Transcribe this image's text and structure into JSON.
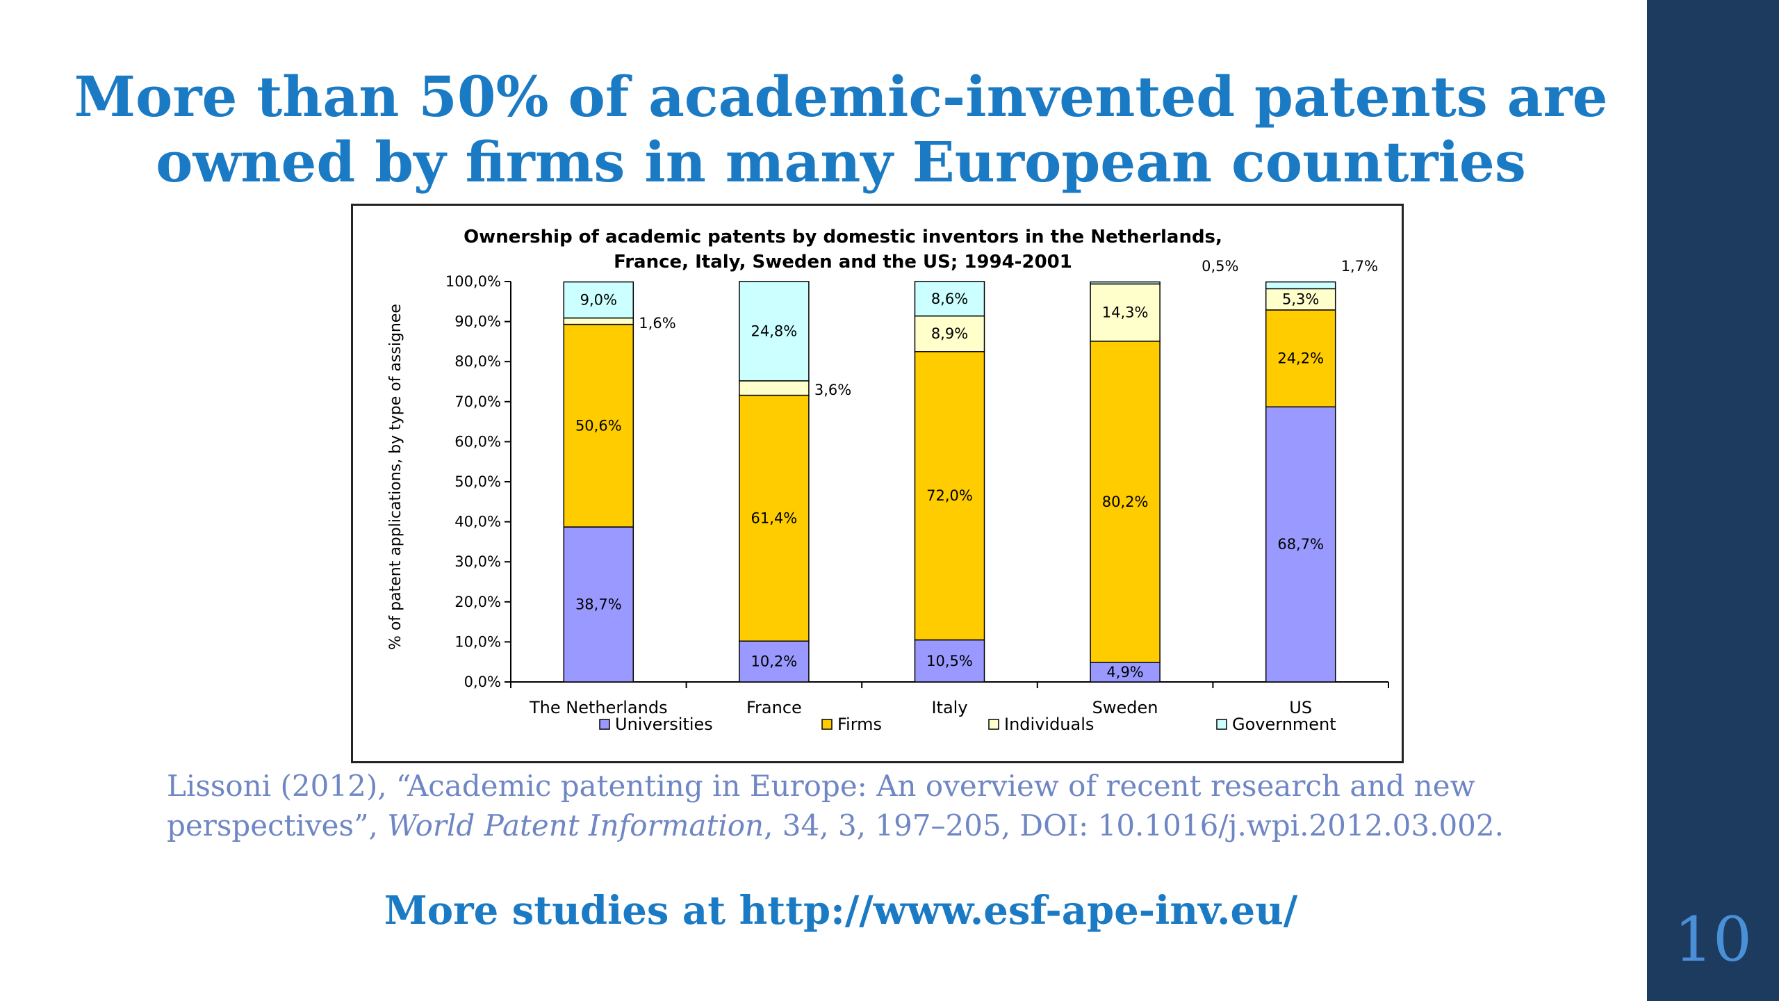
{
  "slide": {
    "title_line1": "More than 50% of academic-invented patents are",
    "title_line2": "owned  by firms in many European countries",
    "page_number": "10",
    "citation_part1": "Lissoni (2012), “Academic patenting in Europe: An overview of recent research and new perspectives”, ",
    "citation_journal": "World Patent Information",
    "citation_part2": ", 34, 3, 197–205, DOI: 10.1016/j.wpi.2012.03.002.",
    "more_studies": "More studies at http://www.esf-ape-inv.eu/",
    "colors": {
      "title": "#1a7ac4",
      "sidebar": "#1d3b5f",
      "citation": "#6f86c4"
    }
  },
  "chart_data": {
    "type": "bar",
    "stacked": true,
    "title_line1": "Ownership of academic patents by domestic inventors in the Netherlands,",
    "title_line2": "France, Italy, Sweden and the US; 1994-2001",
    "ylabel": "% of patent applications, by type of assignee",
    "xlabel": "",
    "ylim": [
      0,
      100
    ],
    "y_ticks": [
      "0,0%",
      "10,0%",
      "20,0%",
      "30,0%",
      "40,0%",
      "50,0%",
      "60,0%",
      "70,0%",
      "80,0%",
      "90,0%",
      "100,0%"
    ],
    "categories": [
      "The Netherlands",
      "France",
      "Italy",
      "Sweden",
      "US"
    ],
    "series": [
      {
        "name": "Universities",
        "color": "#9999ff",
        "values": [
          38.7,
          10.2,
          10.5,
          4.9,
          68.7
        ],
        "labels": [
          "38,7%",
          "10,2%",
          "10,5%",
          "4,9%",
          "68,7%"
        ]
      },
      {
        "name": "Firms",
        "color": "#ffcc00",
        "values": [
          50.6,
          61.4,
          72.0,
          80.2,
          24.2
        ],
        "labels": [
          "50,6%",
          "61,4%",
          "72,0%",
          "80,2%",
          "24,2%"
        ]
      },
      {
        "name": "Individuals",
        "color": "#ffffcc",
        "values": [
          1.6,
          3.6,
          8.9,
          14.3,
          5.3
        ],
        "labels": [
          "1,6%",
          "3,6%",
          "8,9%",
          "14,3%",
          "5,3%"
        ]
      },
      {
        "name": "Government",
        "color": "#ccffff",
        "values": [
          9.0,
          24.8,
          8.6,
          0.5,
          1.7
        ],
        "labels": [
          "9,0%",
          "24,8%",
          "8,6%",
          "0,5%",
          "1,7%"
        ]
      }
    ],
    "legend": "bottom",
    "grid": false
  }
}
